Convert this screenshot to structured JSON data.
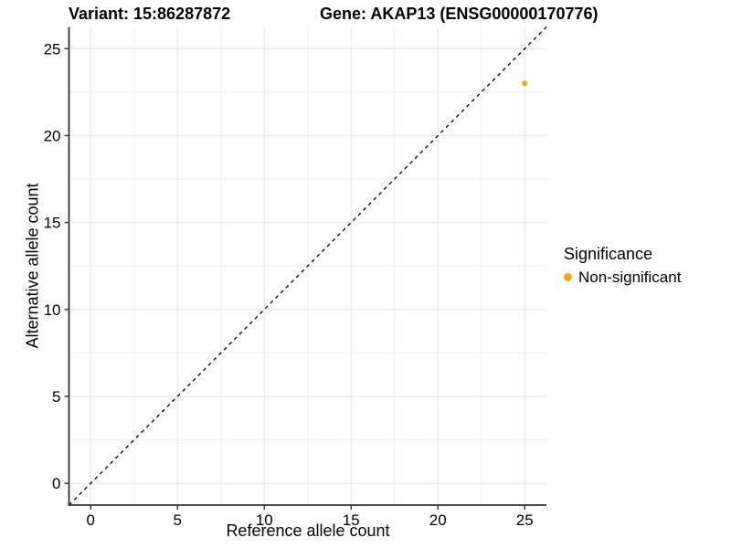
{
  "chart_data": {
    "type": "scatter",
    "variant_title": "Variant: 15:86287872",
    "gene_title": "Gene: AKAP13 (ENSG00000170776)",
    "xlabel": "Reference allele count",
    "ylabel": "Alternative allele count",
    "xlim": [
      -1.25,
      26.25
    ],
    "ylim": [
      -1.25,
      26.25
    ],
    "xticks": [
      0,
      5,
      10,
      15,
      20,
      25
    ],
    "yticks": [
      0,
      5,
      10,
      15,
      20,
      25
    ],
    "x_minor_ticks": [
      2.5,
      7.5,
      12.5,
      17.5,
      22.5
    ],
    "y_minor_ticks": [
      2.5,
      7.5,
      12.5,
      17.5,
      22.5
    ],
    "grid": true,
    "points": [
      {
        "x": 25,
        "y": 23,
        "series": "Non-significant"
      }
    ],
    "identity_line": {
      "slope": 1,
      "intercept": 0,
      "style": "dashed",
      "color": "#000000"
    },
    "legend": {
      "title": "Significance",
      "position": "right",
      "entries": [
        {
          "label": "Non-significant",
          "color": "#FFA500"
        }
      ]
    },
    "colors": {
      "point": "#FFA500",
      "grid_major": "#E7E7E7",
      "grid_minor": "#F2F2F2",
      "axis": "#333333",
      "text": "#000000",
      "background": "#FFFFFF"
    }
  }
}
